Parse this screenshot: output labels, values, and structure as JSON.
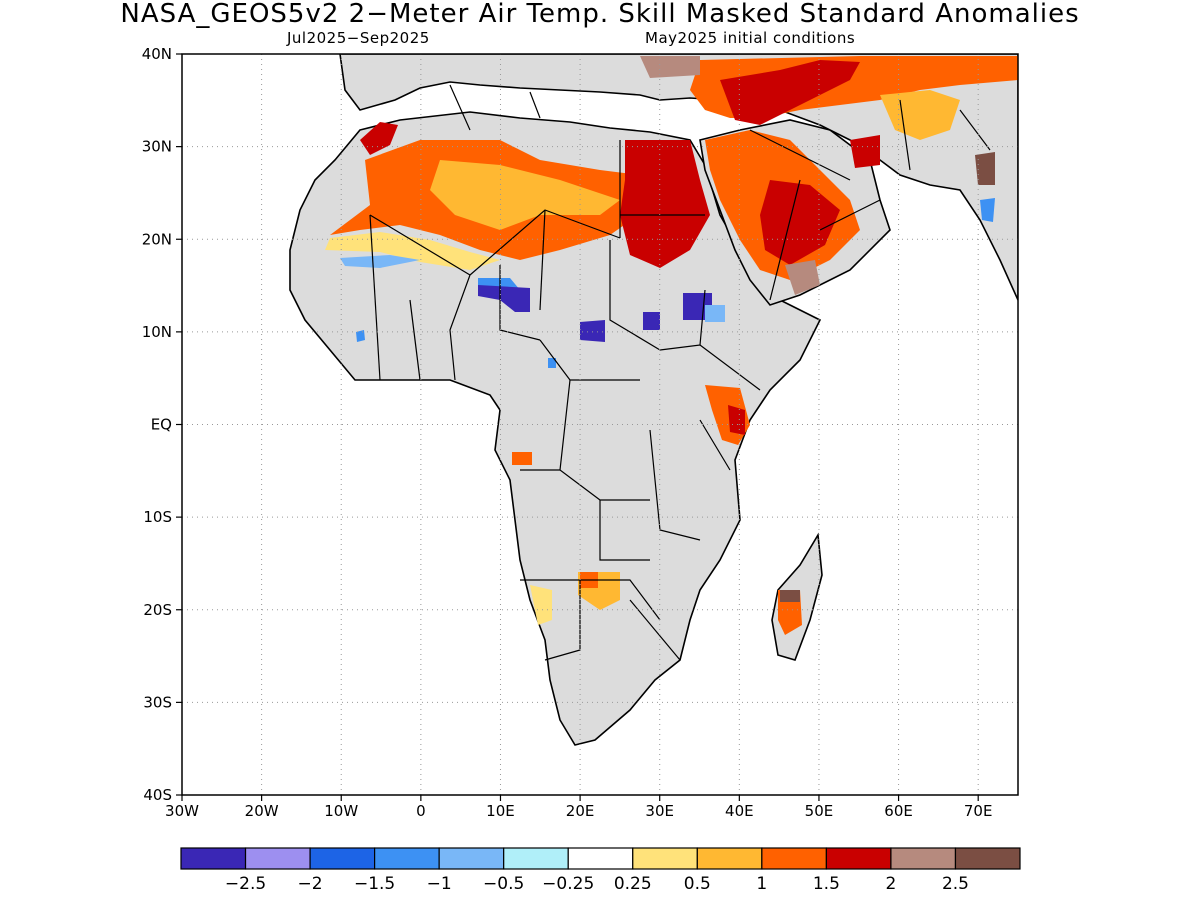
{
  "title": "NASA_GEOS5v2 2−Meter Air Temp. Skill Masked Standard Anomalies",
  "subtitle_left": "Jul2025−Sep2025",
  "subtitle_right": "May2025 initial conditions",
  "map": {
    "lon_range": [
      -30,
      75
    ],
    "lat_range": [
      -40,
      40
    ],
    "x_ticks": [
      "30W",
      "20W",
      "10W",
      "0",
      "10E",
      "20E",
      "30E",
      "40E",
      "50E",
      "60E",
      "70E"
    ],
    "x_tick_values": [
      -30,
      -20,
      -10,
      0,
      10,
      20,
      30,
      40,
      50,
      60,
      70
    ],
    "y_ticks": [
      "40N",
      "30N",
      "20N",
      "10N",
      "EQ",
      "10S",
      "20S",
      "30S",
      "40S"
    ],
    "y_tick_values": [
      40,
      30,
      20,
      10,
      0,
      -10,
      -20,
      -30,
      -40
    ],
    "grid": "dotted",
    "mask_color": "#dcdcdc",
    "colors": {
      "land_mask": "#dcdcdc",
      "coast": "#000000"
    }
  },
  "colorbar": {
    "colors": [
      "#3a27b5",
      "#9d8ff0",
      "#1d64e6",
      "#3d91f3",
      "#79b7f7",
      "#b0eff9",
      "#ffffff",
      "#ffe27a",
      "#ffb832",
      "#ff6100",
      "#c90000",
      "#b68a7e",
      "#7b4e43"
    ],
    "labels": [
      "−2.5",
      "−2",
      "−1.5",
      "−1",
      "−0.5",
      "−0.25",
      "0.25",
      "0.5",
      "1",
      "1.5",
      "2",
      "2.5"
    ]
  }
}
